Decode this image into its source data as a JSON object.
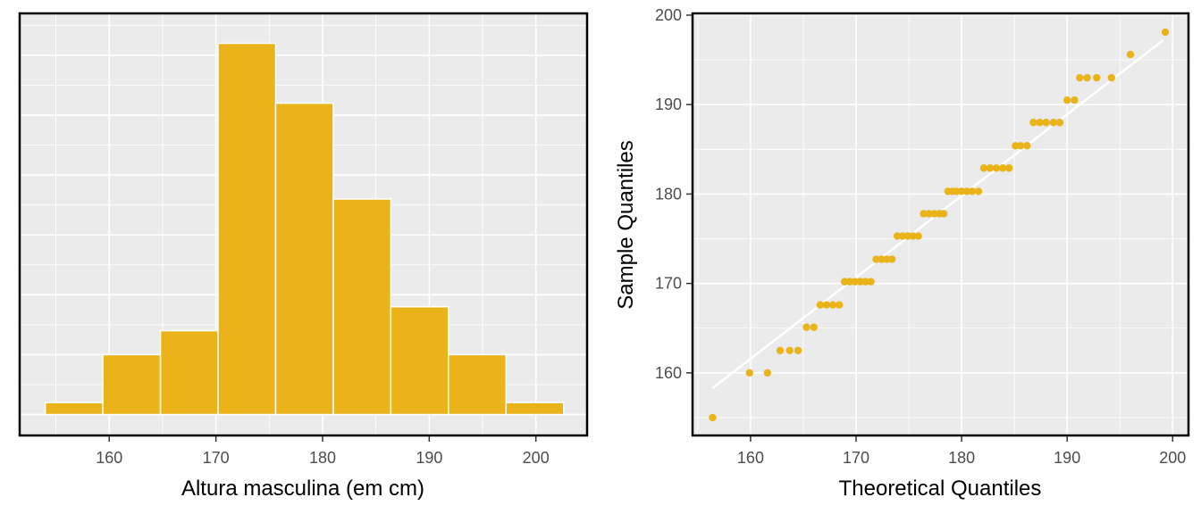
{
  "colors": {
    "panel_bg": "#EBEBEB",
    "grid": "#FFFFFF",
    "fill": "#E9B319",
    "border": "#000000",
    "tick_text": "#4D4D4D",
    "title_text": "#000000"
  },
  "chart_data": [
    {
      "type": "bar",
      "subtype": "histogram",
      "xlabel": "Altura masculina (em cm)",
      "ylabel": "",
      "xlim": [
        151.6,
        204.8
      ],
      "ylim": [
        -0.7,
        13.4
      ],
      "x_ticks": [
        160,
        170,
        180,
        190,
        200
      ],
      "x_tick_labels": [
        "160",
        "170",
        "180",
        "190",
        "200"
      ],
      "y_tick_labels_shown": false,
      "grid": true,
      "bins": [
        {
          "x0": 154.0,
          "x1": 159.4,
          "count": 0.4
        },
        {
          "x0": 159.4,
          "x1": 164.8,
          "count": 2.0
        },
        {
          "x0": 164.8,
          "x1": 170.2,
          "count": 2.8
        },
        {
          "x0": 170.2,
          "x1": 175.6,
          "count": 12.4
        },
        {
          "x0": 175.6,
          "x1": 181.0,
          "count": 10.4
        },
        {
          "x0": 181.0,
          "x1": 186.4,
          "count": 7.2
        },
        {
          "x0": 186.4,
          "x1": 191.8,
          "count": 3.6
        },
        {
          "x0": 191.8,
          "x1": 197.2,
          "count": 2.0
        },
        {
          "x0": 197.2,
          "x1": 202.6,
          "count": 0.4
        }
      ]
    },
    {
      "type": "scatter",
      "subtype": "qq-plot",
      "xlabel": "Theoretical Quantiles",
      "ylabel": "Sample Quantiles",
      "xlim": [
        154.5,
        201.5
      ],
      "ylim": [
        153.0,
        200.2
      ],
      "x_ticks": [
        160,
        170,
        180,
        190,
        200
      ],
      "x_tick_labels": [
        "160",
        "170",
        "180",
        "190",
        "200"
      ],
      "y_ticks": [
        160,
        170,
        180,
        190,
        200
      ],
      "y_tick_labels": [
        "160",
        "170",
        "180",
        "190",
        "200"
      ],
      "grid": true,
      "reference_line": {
        "x": [
          156.4,
          199.1
        ],
        "y": [
          158.3,
          197.2
        ]
      },
      "points": [
        {
          "x": 156.4,
          "y": 155.0
        },
        {
          "x": 159.9,
          "y": 160.0
        },
        {
          "x": 161.6,
          "y": 160.0
        },
        {
          "x": 162.8,
          "y": 162.5
        },
        {
          "x": 163.7,
          "y": 162.5
        },
        {
          "x": 164.5,
          "y": 162.5
        },
        {
          "x": 165.3,
          "y": 165.1
        },
        {
          "x": 166.0,
          "y": 165.1
        },
        {
          "x": 166.6,
          "y": 167.6
        },
        {
          "x": 167.2,
          "y": 167.6
        },
        {
          "x": 167.8,
          "y": 167.6
        },
        {
          "x": 168.4,
          "y": 167.6
        },
        {
          "x": 168.9,
          "y": 170.2
        },
        {
          "x": 169.4,
          "y": 170.2
        },
        {
          "x": 169.9,
          "y": 170.2
        },
        {
          "x": 170.4,
          "y": 170.2
        },
        {
          "x": 170.9,
          "y": 170.2
        },
        {
          "x": 171.4,
          "y": 170.2
        },
        {
          "x": 171.9,
          "y": 172.7
        },
        {
          "x": 172.4,
          "y": 172.7
        },
        {
          "x": 172.9,
          "y": 172.7
        },
        {
          "x": 173.4,
          "y": 172.7
        },
        {
          "x": 173.9,
          "y": 175.3
        },
        {
          "x": 174.4,
          "y": 175.3
        },
        {
          "x": 174.9,
          "y": 175.3
        },
        {
          "x": 175.4,
          "y": 175.3
        },
        {
          "x": 175.9,
          "y": 175.3
        },
        {
          "x": 176.4,
          "y": 177.8
        },
        {
          "x": 176.9,
          "y": 177.8
        },
        {
          "x": 177.4,
          "y": 177.8
        },
        {
          "x": 177.9,
          "y": 177.8
        },
        {
          "x": 178.3,
          "y": 177.8
        },
        {
          "x": 178.7,
          "y": 180.3
        },
        {
          "x": 179.1,
          "y": 180.3
        },
        {
          "x": 179.5,
          "y": 180.3
        },
        {
          "x": 180.0,
          "y": 180.3
        },
        {
          "x": 180.5,
          "y": 180.3
        },
        {
          "x": 181.0,
          "y": 180.3
        },
        {
          "x": 181.6,
          "y": 180.3
        },
        {
          "x": 182.1,
          "y": 182.9
        },
        {
          "x": 182.7,
          "y": 182.9
        },
        {
          "x": 183.3,
          "y": 182.9
        },
        {
          "x": 183.9,
          "y": 182.9
        },
        {
          "x": 184.5,
          "y": 182.9
        },
        {
          "x": 185.1,
          "y": 185.4
        },
        {
          "x": 185.6,
          "y": 185.4
        },
        {
          "x": 186.2,
          "y": 185.4
        },
        {
          "x": 186.8,
          "y": 188.0
        },
        {
          "x": 187.4,
          "y": 188.0
        },
        {
          "x": 188.0,
          "y": 188.0
        },
        {
          "x": 188.7,
          "y": 188.0
        },
        {
          "x": 189.3,
          "y": 188.0
        },
        {
          "x": 190.0,
          "y": 190.5
        },
        {
          "x": 190.7,
          "y": 190.5
        },
        {
          "x": 191.2,
          "y": 193.0
        },
        {
          "x": 191.9,
          "y": 193.0
        },
        {
          "x": 192.8,
          "y": 193.0
        },
        {
          "x": 194.2,
          "y": 193.0
        },
        {
          "x": 196.0,
          "y": 195.6
        },
        {
          "x": 199.3,
          "y": 198.1
        }
      ]
    }
  ]
}
